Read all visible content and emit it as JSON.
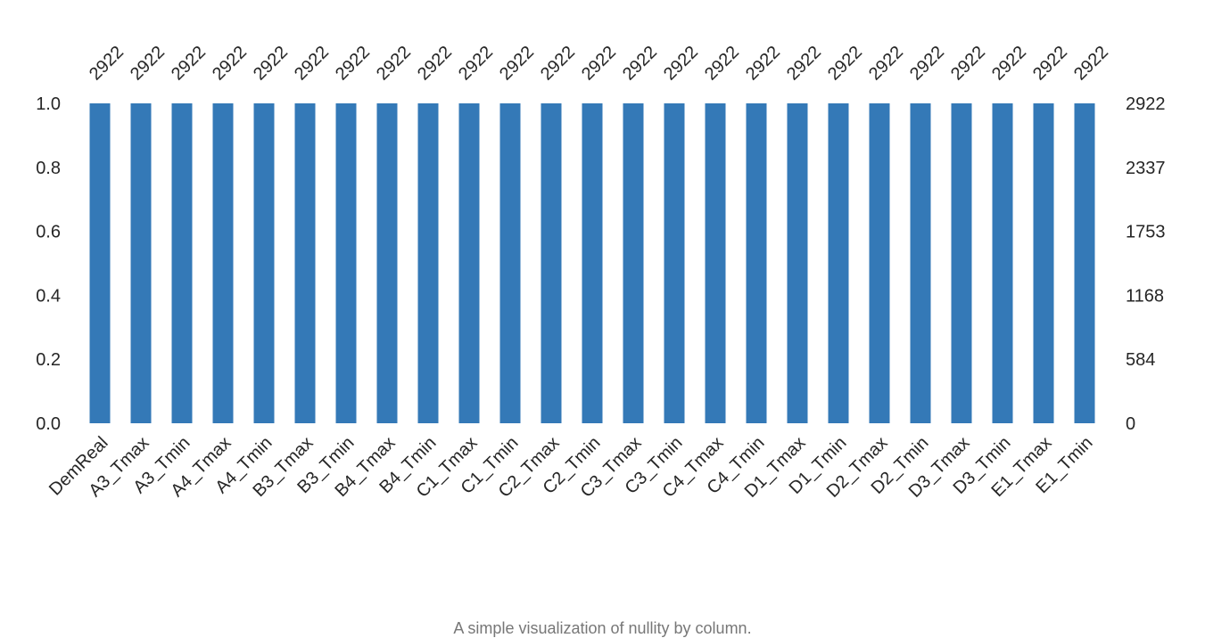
{
  "caption": "A simple visualization of nullity by column.",
  "colors": {
    "bar": "#3479b7",
    "text": "#262626",
    "caption": "#777777"
  },
  "chart_data": {
    "type": "bar",
    "categories": [
      "DemReal",
      "A3_Tmax",
      "A3_Tmin",
      "A4_Tmax",
      "A4_Tmin",
      "B3_Tmax",
      "B3_Tmin",
      "B4_Tmax",
      "B4_Tmin",
      "C1_Tmax",
      "C1_Tmin",
      "C2_Tmax",
      "C2_Tmin",
      "C3_Tmax",
      "C3_Tmin",
      "C4_Tmax",
      "C4_Tmin",
      "D1_Tmax",
      "D1_Tmin",
      "D2_Tmax",
      "D2_Tmin",
      "D3_Tmax",
      "D3_Tmin",
      "E1_Tmax",
      "E1_Tmin"
    ],
    "counts": [
      2922,
      2922,
      2922,
      2922,
      2922,
      2922,
      2922,
      2922,
      2922,
      2922,
      2922,
      2922,
      2922,
      2922,
      2922,
      2922,
      2922,
      2922,
      2922,
      2922,
      2922,
      2922,
      2922,
      2922,
      2922
    ],
    "total": 2922,
    "ylim": [
      0,
      1
    ],
    "left_ticks": [
      "0.0",
      "0.2",
      "0.4",
      "0.6",
      "0.8",
      "1.0"
    ],
    "right_ticks": [
      "0",
      "584",
      "1168",
      "1753",
      "2337",
      "2922"
    ],
    "grid": false
  }
}
